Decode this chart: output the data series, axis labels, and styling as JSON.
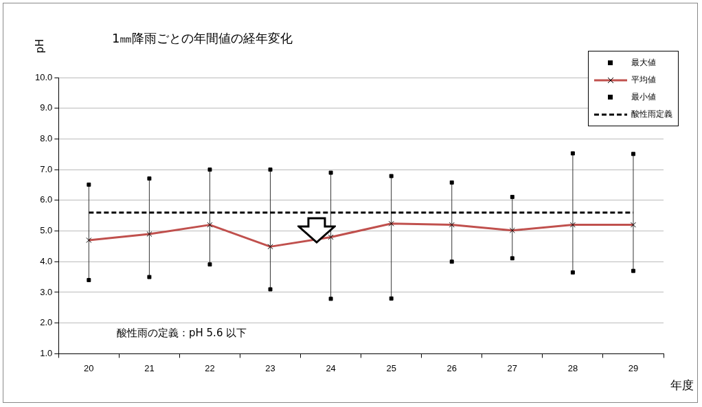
{
  "chart_data": {
    "type": "line",
    "title": "1㎜降雨ごとの年間値の経年変化",
    "ylabel": "pH",
    "xlabel": "年度",
    "categories": [
      "20",
      "21",
      "22",
      "23",
      "24",
      "25",
      "26",
      "27",
      "28",
      "29"
    ],
    "series": [
      {
        "name": "最大値",
        "type": "scatter",
        "marker": "square",
        "color": "#000000",
        "values": [
          6.51,
          6.71,
          7.0,
          7.0,
          6.9,
          6.79,
          6.58,
          6.11,
          7.53,
          7.51
        ]
      },
      {
        "name": "平均値",
        "type": "line",
        "marker": "cross",
        "color": "#c0504d",
        "values": [
          4.7,
          4.9,
          5.2,
          4.49,
          4.8,
          5.24,
          5.2,
          5.02,
          5.2,
          5.2
        ]
      },
      {
        "name": "最小値",
        "type": "scatter",
        "marker": "square",
        "color": "#000000",
        "values": [
          3.4,
          3.5,
          3.91,
          3.1,
          2.79,
          2.8,
          4.0,
          4.11,
          3.65,
          3.7
        ]
      },
      {
        "name": "酸性雨定義",
        "type": "line",
        "marker": "none",
        "line_style": "dashed",
        "color": "#000000",
        "values": [
          5.6,
          5.6,
          5.6,
          5.6,
          5.6,
          5.6,
          5.6,
          5.6,
          5.6,
          5.6
        ]
      }
    ],
    "ylim": [
      1,
      10
    ],
    "yticks": [
      {
        "value": 1,
        "label": "1.0"
      },
      {
        "value": 2,
        "label": "2.0"
      },
      {
        "value": 3,
        "label": "3.0"
      },
      {
        "value": 4,
        "label": "4.0"
      },
      {
        "value": 5,
        "label": "5.0"
      },
      {
        "value": 6,
        "label": "6.0"
      },
      {
        "value": 7,
        "label": "7.0"
      },
      {
        "value": 8,
        "label": "8.0"
      },
      {
        "value": 9,
        "label": "9.0"
      },
      {
        "value": 10,
        "label": "10.0"
      }
    ],
    "grid": "y",
    "legend": "top right",
    "annotations": [
      "酸性雨の定義：pH 5.6 以下"
    ]
  }
}
